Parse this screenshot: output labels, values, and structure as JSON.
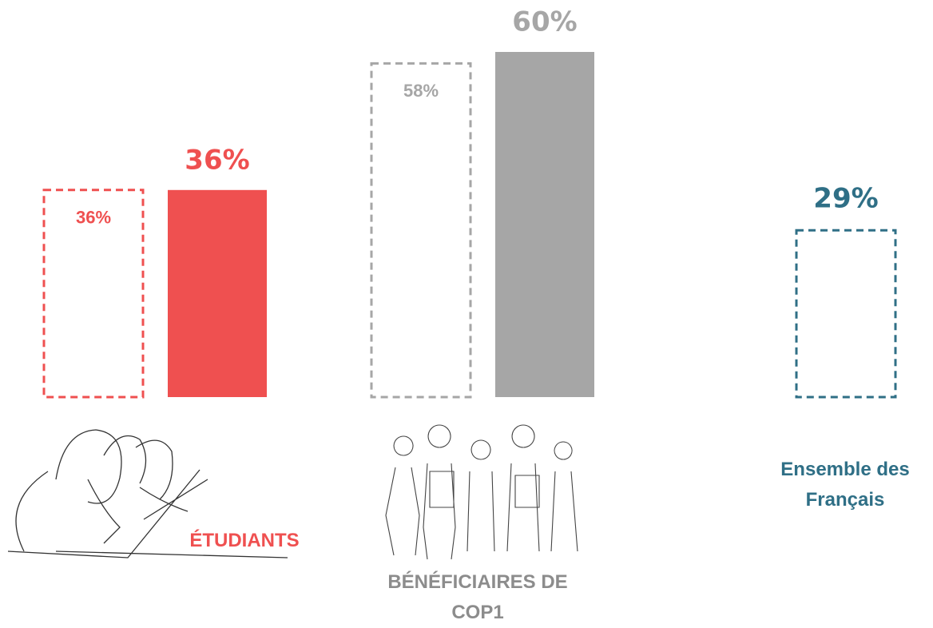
{
  "chart_data": {
    "type": "bar",
    "categories": [
      "ÉTUDIANTS",
      "BÉNÉFICIAIRES DE COP1",
      "Ensemble des Français"
    ],
    "colors": [
      "#ef5050",
      "#a6a6a6",
      "#2f6f86"
    ],
    "ylim": [
      0,
      60
    ],
    "series": [
      {
        "style": "dashed",
        "values": [
          36,
          58,
          29
        ],
        "value_labels": [
          "36%",
          "58%",
          "29%"
        ]
      },
      {
        "style": "solid",
        "values": [
          36,
          60,
          null
        ],
        "value_labels": [
          "36%",
          "60%",
          null
        ]
      }
    ]
  }
}
